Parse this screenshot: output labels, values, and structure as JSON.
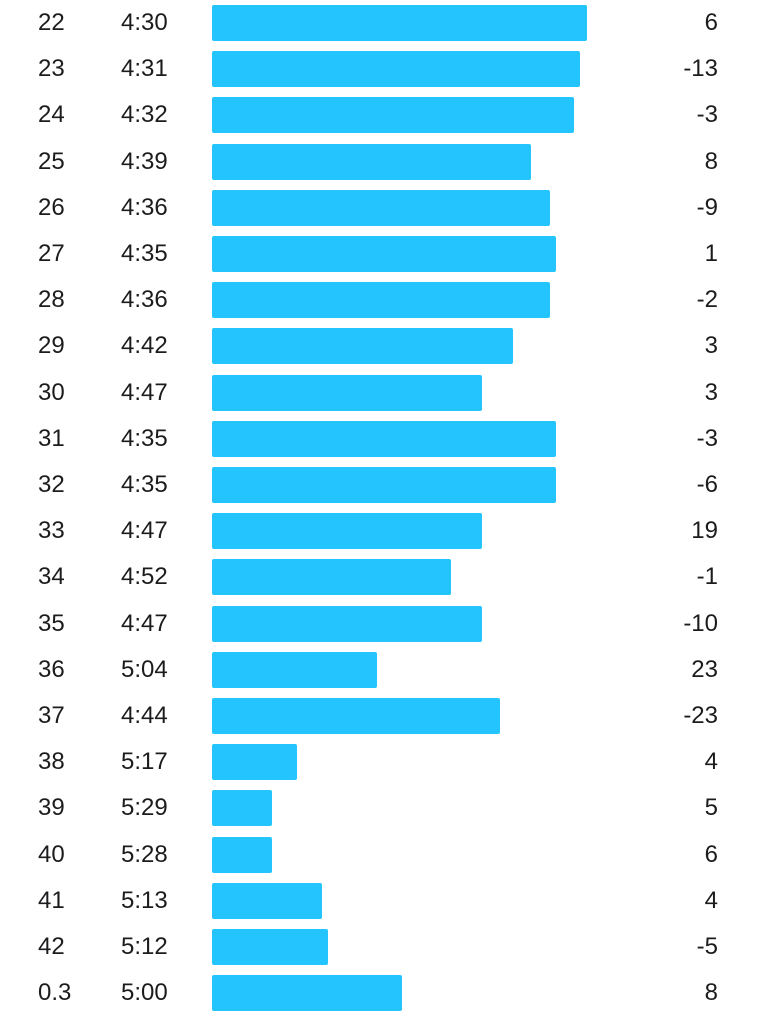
{
  "colors": {
    "bar": "#24c4ff",
    "text": "#1c1c1e",
    "background": "#ffffff"
  },
  "splits": [
    {
      "km": "22",
      "pace": "4:30",
      "pace_seconds": 270,
      "elevation": "6"
    },
    {
      "km": "23",
      "pace": "4:31",
      "pace_seconds": 271,
      "elevation": "-13"
    },
    {
      "km": "24",
      "pace": "4:32",
      "pace_seconds": 272,
      "elevation": "-3"
    },
    {
      "km": "25",
      "pace": "4:39",
      "pace_seconds": 279,
      "elevation": "8"
    },
    {
      "km": "26",
      "pace": "4:36",
      "pace_seconds": 276,
      "elevation": "-9"
    },
    {
      "km": "27",
      "pace": "4:35",
      "pace_seconds": 275,
      "elevation": "1"
    },
    {
      "km": "28",
      "pace": "4:36",
      "pace_seconds": 276,
      "elevation": "-2"
    },
    {
      "km": "29",
      "pace": "4:42",
      "pace_seconds": 282,
      "elevation": "3"
    },
    {
      "km": "30",
      "pace": "4:47",
      "pace_seconds": 287,
      "elevation": "3"
    },
    {
      "km": "31",
      "pace": "4:35",
      "pace_seconds": 275,
      "elevation": "-3"
    },
    {
      "km": "32",
      "pace": "4:35",
      "pace_seconds": 275,
      "elevation": "-6"
    },
    {
      "km": "33",
      "pace": "4:47",
      "pace_seconds": 287,
      "elevation": "19"
    },
    {
      "km": "34",
      "pace": "4:52",
      "pace_seconds": 292,
      "elevation": "-1"
    },
    {
      "km": "35",
      "pace": "4:47",
      "pace_seconds": 287,
      "elevation": "-10"
    },
    {
      "km": "36",
      "pace": "5:04",
      "pace_seconds": 304,
      "elevation": "23"
    },
    {
      "km": "37",
      "pace": "4:44",
      "pace_seconds": 284,
      "elevation": "-23"
    },
    {
      "km": "38",
      "pace": "5:17",
      "pace_seconds": 317,
      "elevation": "4"
    },
    {
      "km": "39",
      "pace": "5:29",
      "pace_seconds": 329,
      "elevation": "5"
    },
    {
      "km": "40",
      "pace": "5:28",
      "pace_seconds": 328,
      "elevation": "6"
    },
    {
      "km": "41",
      "pace": "5:13",
      "pace_seconds": 313,
      "elevation": "4"
    },
    {
      "km": "42",
      "pace": "5:12",
      "pace_seconds": 312,
      "elevation": "-5"
    },
    {
      "km": "0.3",
      "pace": "5:00",
      "pace_seconds": 300,
      "elevation": "8"
    }
  ]
}
